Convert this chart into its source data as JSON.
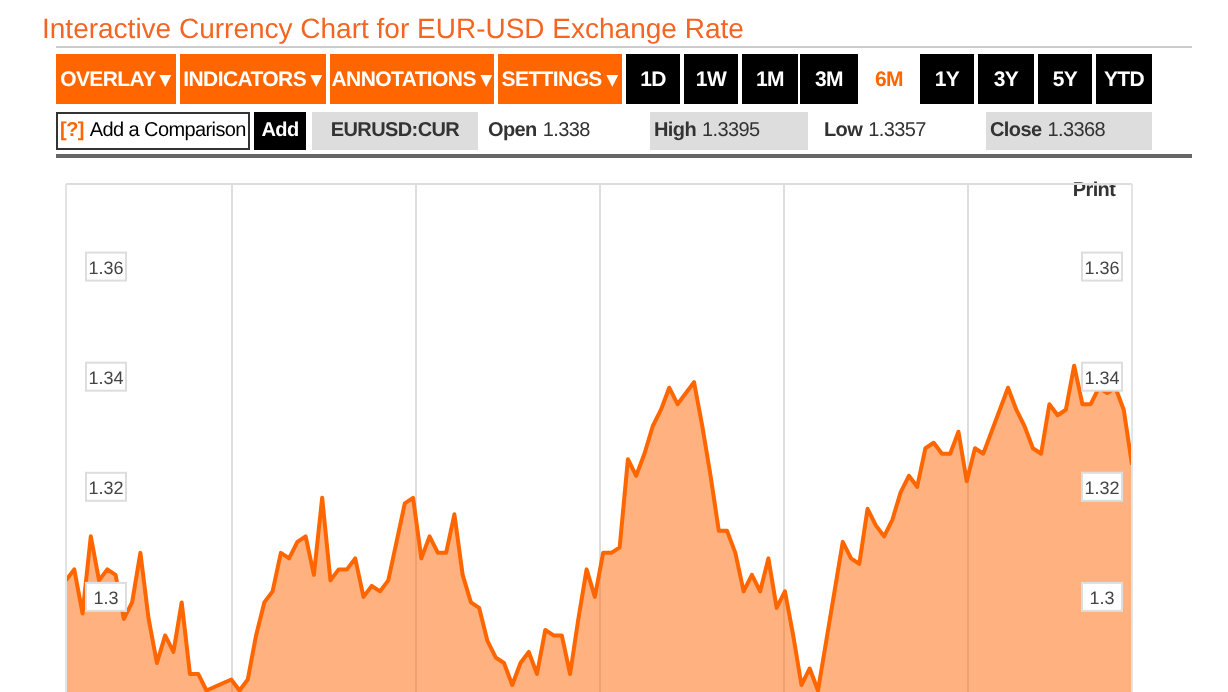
{
  "chart_data": {
    "type": "area",
    "title": "Interactive Currency Chart for EUR-USD Exchange Rate",
    "annotations": [
      "OVERLAY ▾",
      "INDICATORS ▾",
      "ANNOTATIONS ▾",
      "SETTINGS ▾",
      "1D",
      "1W",
      "1M",
      "3M",
      "6M",
      "1Y",
      "3Y",
      "5Y",
      "YTD",
      "[?]",
      "Add a Comparison",
      "Add",
      "EURUSD:CUR",
      "Open",
      "1.338",
      "High",
      "1.3395",
      "Low",
      "1.3357",
      "Close",
      "1.3368",
      "Print"
    ],
    "categories": [
      null,
      null,
      null,
      null,
      null,
      null,
      null,
      null,
      null,
      null,
      null,
      null,
      null,
      null,
      null,
      null,
      null,
      null,
      null,
      null,
      null,
      null,
      null,
      null,
      null,
      null,
      null,
      null,
      null,
      null,
      null,
      null,
      null,
      null,
      null,
      null,
      null,
      null,
      null,
      null,
      null,
      null,
      null,
      null,
      null,
      null,
      null,
      null,
      null,
      null,
      null,
      null,
      null,
      null,
      null,
      null,
      null,
      null,
      null,
      null,
      null,
      null,
      null,
      null,
      null,
      null,
      null,
      null,
      null,
      null,
      null,
      null,
      null,
      null,
      null,
      null,
      null,
      null,
      null,
      null,
      null,
      null,
      null,
      null,
      null,
      null,
      null,
      null,
      null,
      null,
      null,
      null,
      null,
      null,
      null,
      null,
      null,
      null,
      null,
      null,
      null,
      null,
      null,
      null,
      null,
      null,
      null,
      null,
      null,
      null,
      null,
      null,
      null,
      null,
      null,
      null,
      null,
      null,
      null,
      null,
      null,
      null,
      null,
      null,
      null,
      null,
      null,
      null,
      null,
      null
    ],
    "series": [
      {
        "color": "#ff6600",
        "values": [
          1.303,
          1.305,
          1.297,
          1.311,
          1.303,
          1.305,
          1.304,
          1.296,
          1.299,
          1.308,
          1.296,
          1.288,
          1.293,
          1.29,
          1.299,
          1.286,
          1.286,
          1.283,
          null,
          null,
          1.285,
          1.283,
          1.285,
          1.293,
          1.299,
          1.301,
          1.308,
          1.307,
          1.31,
          1.311,
          1.304,
          1.318,
          1.303,
          1.305,
          1.305,
          1.307,
          1.3,
          1.302,
          1.301,
          1.303,
          1.31,
          1.317,
          1.318,
          1.307,
          1.311,
          1.308,
          1.308,
          1.315,
          1.304,
          1.299,
          1.298,
          1.292,
          1.289,
          1.288,
          1.284,
          1.288,
          1.29,
          1.286,
          1.294,
          1.293,
          1.293,
          1.286,
          1.296,
          1.305,
          1.3,
          1.308,
          1.308,
          1.309,
          1.325,
          1.322,
          1.326,
          1.331,
          1.334,
          1.338,
          1.335,
          1.337,
          1.339,
          1.331,
          1.322,
          1.312,
          1.312,
          1.308,
          1.301,
          1.304,
          1.301,
          1.307,
          1.298,
          1.301,
          1.293,
          1.284,
          1.287,
          1.283,
          null,
          1.301,
          1.31,
          1.307,
          1.306,
          1.316,
          1.313,
          1.311,
          1.314,
          1.319,
          1.322,
          1.32,
          1.327,
          1.328,
          1.326,
          1.326,
          1.33,
          1.321,
          1.327,
          1.326,
          1.33,
          1.334,
          1.338,
          1.334,
          1.331,
          1.327,
          1.326,
          1.335,
          1.333,
          1.334,
          1.342,
          1.335,
          1.335,
          1.338,
          1.337,
          1.338,
          1.334,
          1.324
        ]
      }
    ],
    "ylim": [
      1.282,
      1.375
    ],
    "yticks": [
      1.3,
      1.32,
      1.34,
      1.36
    ],
    "y2lim": [
      1.282,
      1.375
    ],
    "y2ticks": [
      1.3,
      1.32,
      1.34,
      1.36
    ],
    "grid": true,
    "tick_labels": "y",
    "marker": "none",
    "line_style": "solid"
  }
}
